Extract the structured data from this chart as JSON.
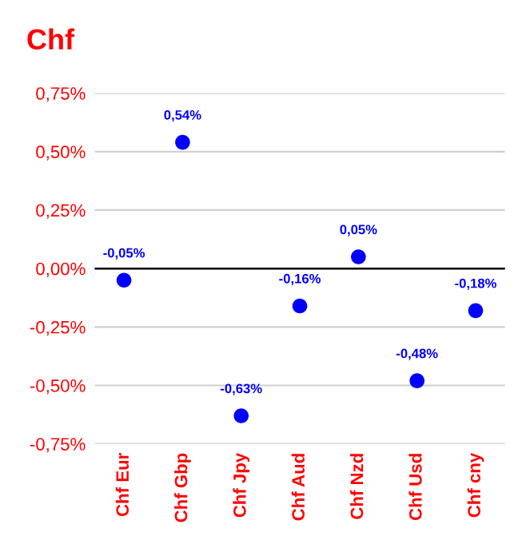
{
  "chart_data": {
    "type": "scatter",
    "title": "Chf",
    "categories": [
      "Chf Eur",
      "Chf Gbp",
      "Chf Jpy",
      "Chf Aud",
      "Chf Nzd",
      "Chf Usd",
      "Chf cny"
    ],
    "series": [
      {
        "color": "#0000ff",
        "values": [
          -0.05,
          0.54,
          -0.63,
          -0.16,
          0.05,
          -0.48,
          -0.18
        ],
        "value_labels": [
          "-0,05%",
          "0,54%",
          "-0,63%",
          "-0,16%",
          "0,05%",
          "-0,48%",
          "-0,18%"
        ]
      }
    ],
    "ylim": [
      -0.75,
      0.75
    ],
    "yticks": [
      {
        "value": -0.75,
        "label": "-0,75%"
      },
      {
        "value": -0.5,
        "label": "-0,50%"
      },
      {
        "value": -0.25,
        "label": "-0,25%"
      },
      {
        "value": 0,
        "label": "0,00%"
      },
      {
        "value": 0.25,
        "label": "0,25%"
      },
      {
        "value": 0.5,
        "label": "0,50%"
      },
      {
        "value": 0.75,
        "label": "0,75%"
      }
    ],
    "ref_lines": [
      {
        "axis": "y",
        "value": 0,
        "color": "#000000"
      }
    ],
    "grid": "y",
    "marker": "circle",
    "legend": false
  }
}
